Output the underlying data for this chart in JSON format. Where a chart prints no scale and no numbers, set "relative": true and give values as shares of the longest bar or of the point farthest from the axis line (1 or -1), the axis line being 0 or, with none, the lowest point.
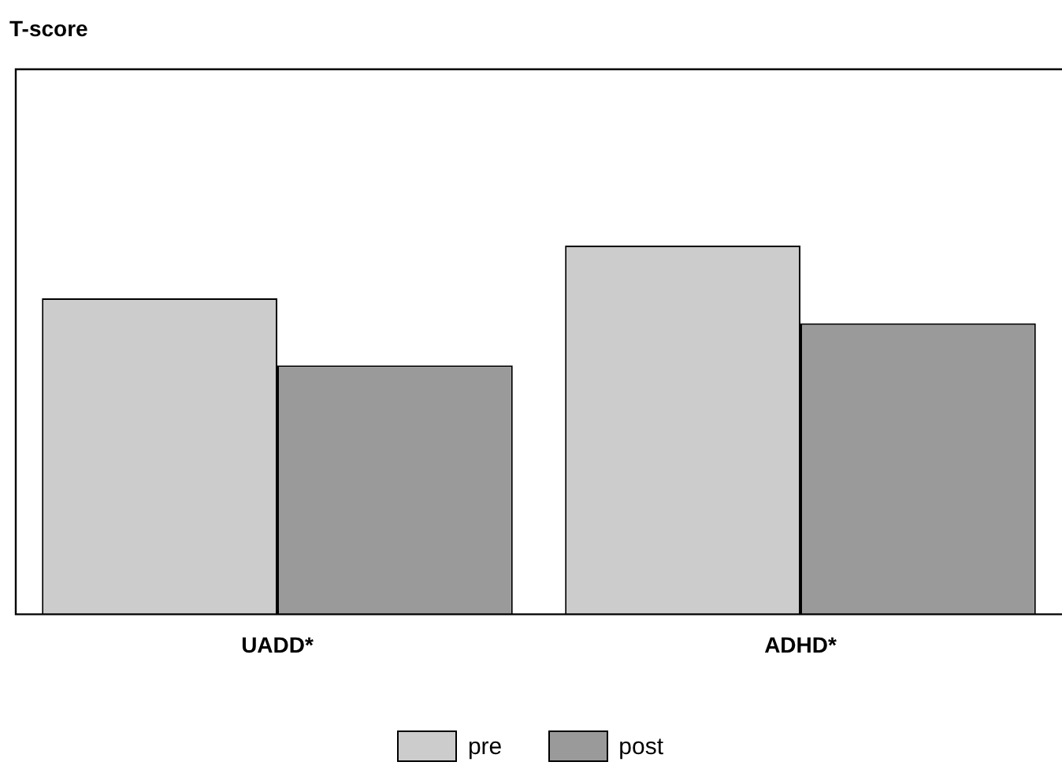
{
  "chart_data": {
    "type": "bar",
    "annotations": [
      "T-score"
    ],
    "relative": true,
    "categories": [
      "UADD*",
      "ADHD*"
    ],
    "series": [
      {
        "name": "pre",
        "color": "#cccccc",
        "values": [
          0.857,
          1
        ]
      },
      {
        "name": "post",
        "color": "#9a9a9a",
        "values": [
          0.675,
          0.789
        ]
      }
    ],
    "legend": "bottom",
    "grid": false
  }
}
